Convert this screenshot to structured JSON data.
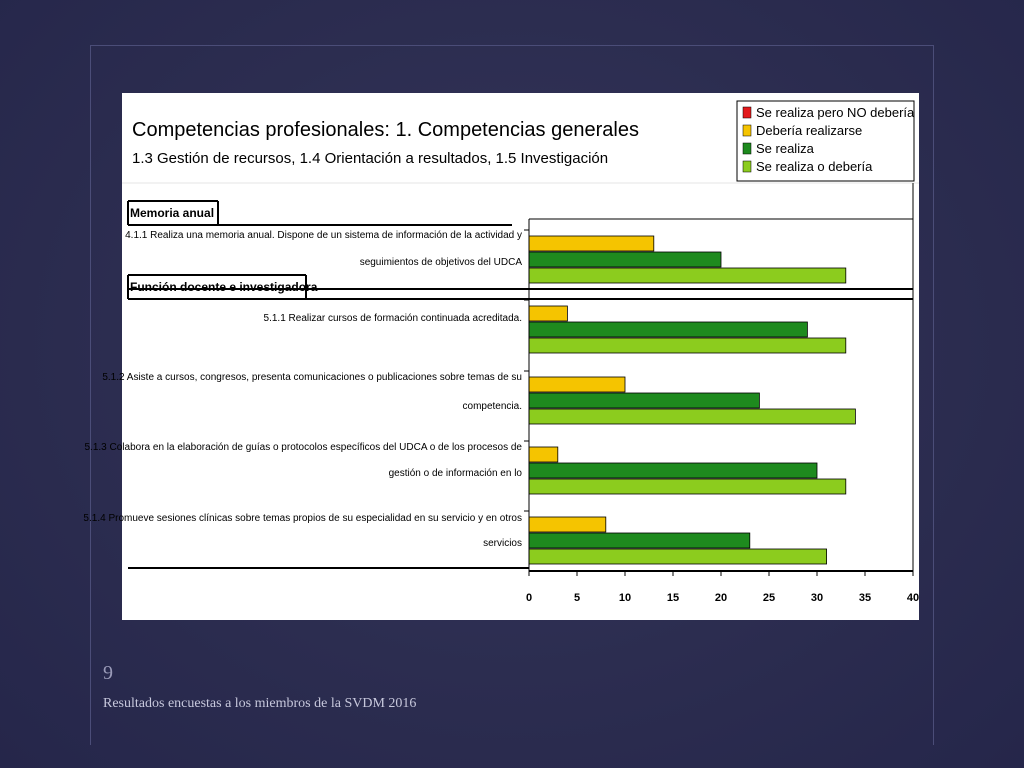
{
  "slide": {
    "page_number": "9",
    "footer": "Resultados encuestas a los miembros de la SVDM 2016"
  },
  "colors": {
    "background": "#2c2d50",
    "no_deberia": "#e31a1c",
    "deberia_realizarse": "#f5c400",
    "se_realiza": "#1e8a1e",
    "se_realiza_o_deberia": "#8ccc1e"
  },
  "chart_data": {
    "type": "bar",
    "orientation": "horizontal",
    "title": "Competencias profesionales: 1. Competencias generales",
    "subtitle": "1.3 Gestión de recursos,  1.4 Orientación a resultados,  1.5 Investigación",
    "legend_position": "top-right",
    "legend": [
      {
        "label": "Se realiza pero NO debería",
        "color": "#e31a1c"
      },
      {
        "label": "Debería realizarse",
        "color": "#f5c400"
      },
      {
        "label": "Se realiza",
        "color": "#1e8a1e"
      },
      {
        "label": "Se realiza o debería",
        "color": "#8ccc1e"
      }
    ],
    "xlim": [
      0,
      40
    ],
    "xticks": [
      0,
      5,
      10,
      15,
      20,
      25,
      30,
      35,
      40
    ],
    "grid": false,
    "sections": [
      {
        "title": "Memoria anual",
        "before_category": 0
      },
      {
        "title": "Función docente e investigadora",
        "before_category": 1
      }
    ],
    "categories": [
      {
        "lines": [
          "4.1.1 Realiza una memoria anual. Dispone de un sistema de información de la actividad y",
          "seguimientos de objetivos del UDCA"
        ]
      },
      {
        "lines": [
          "5.1.1 Realizar cursos de formación continuada acreditada."
        ]
      },
      {
        "lines": [
          "5.1.2 Asiste a cursos, congresos, presenta comunicaciones o publicaciones sobre temas de su",
          "competencia."
        ]
      },
      {
        "lines": [
          "5.1.3 Colabora en la elaboración de guías o protocolos específicos del UDCA o de los procesos de",
          "gestión o de información en lo"
        ]
      },
      {
        "lines": [
          "5.1.4 Promueve sesiones clínicas sobre temas propios de su especialidad en su servicio y en otros",
          "servicios"
        ]
      }
    ],
    "series": [
      {
        "name": "Se realiza pero NO debería",
        "values": [
          0,
          0,
          0,
          0,
          0
        ]
      },
      {
        "name": "Debería realizarse",
        "values": [
          13,
          4,
          10,
          3,
          8
        ]
      },
      {
        "name": "Se realiza",
        "values": [
          20,
          29,
          24,
          30,
          23
        ]
      },
      {
        "name": "Se realiza o debería",
        "values": [
          33,
          33,
          34,
          33,
          31
        ]
      }
    ]
  }
}
